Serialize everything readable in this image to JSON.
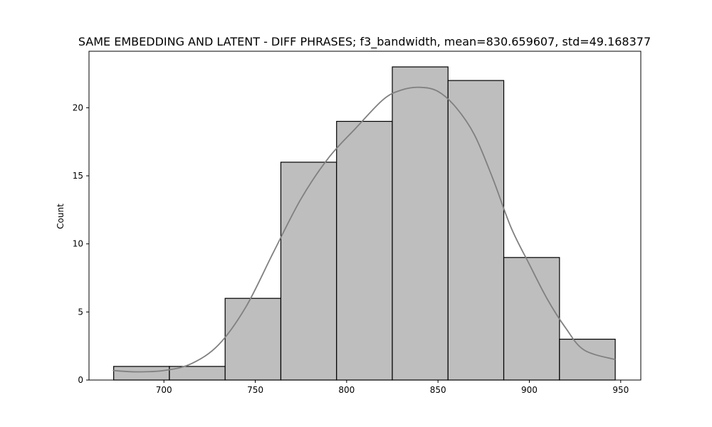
{
  "chart_data": {
    "type": "bar",
    "subtype": "histogram",
    "title": "SAME EMBEDDING AND LATENT - DIFF PHRASES; f3_bandwidth, mean=830.659607, std=49.168377",
    "xlabel": "",
    "ylabel": "Count",
    "xlim": [
      659,
      961
    ],
    "ylim": [
      0,
      24.15
    ],
    "xticks": [
      700,
      750,
      800,
      850,
      900,
      950
    ],
    "yticks": [
      0,
      5,
      10,
      15,
      20
    ],
    "bins": [
      {
        "x0": 672.5,
        "x1": 703.0,
        "count": 1
      },
      {
        "x0": 703.0,
        "x1": 733.5,
        "count": 1
      },
      {
        "x0": 733.5,
        "x1": 764.0,
        "count": 6
      },
      {
        "x0": 764.0,
        "x1": 794.5,
        "count": 16
      },
      {
        "x0": 794.5,
        "x1": 825.0,
        "count": 19
      },
      {
        "x0": 825.0,
        "x1": 855.5,
        "count": 23
      },
      {
        "x0": 855.5,
        "x1": 886.0,
        "count": 22
      },
      {
        "x0": 886.0,
        "x1": 916.5,
        "count": 9
      },
      {
        "x0": 916.5,
        "x1": 947.0,
        "count": 3
      }
    ],
    "kde": {
      "x": [
        672,
        685,
        700,
        715,
        730,
        745,
        760,
        775,
        790,
        805,
        820,
        830,
        840,
        850,
        860,
        870,
        880,
        890,
        900,
        910,
        920,
        930,
        947
      ],
      "y": [
        0.7,
        0.6,
        0.7,
        1.2,
        2.6,
        5.4,
        9.4,
        13.3,
        16.3,
        18.5,
        20.6,
        21.3,
        21.5,
        21.2,
        20.0,
        18.0,
        14.8,
        11.2,
        8.5,
        5.9,
        3.8,
        2.2,
        1.5
      ]
    },
    "grid": false,
    "legend": "none",
    "colors": {
      "bar_fill": "#bebebe",
      "bar_edge": "#000000",
      "kde_line": "#808080"
    }
  }
}
